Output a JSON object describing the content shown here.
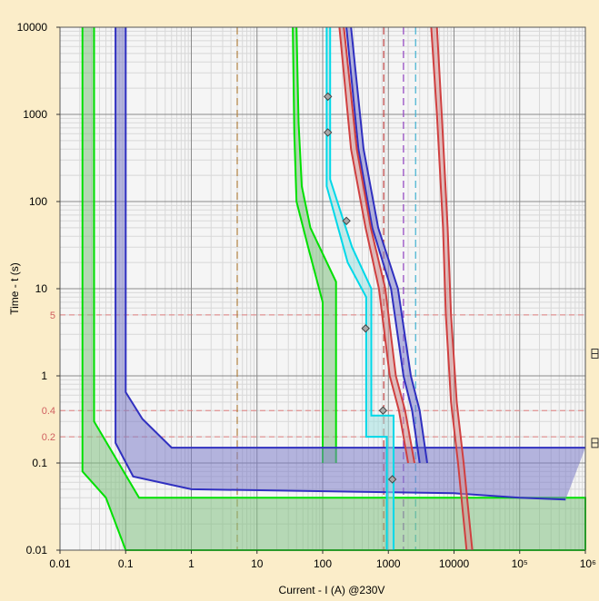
{
  "chart_data": {
    "type": "line",
    "xlabel": "Current - I (A) @230V",
    "ylabel": "Time - t (s)",
    "xscale": "log",
    "yscale": "log",
    "xlim": [
      0.01,
      1000000
    ],
    "ylim": [
      0.01,
      10000
    ],
    "grid": true,
    "legend": "none",
    "x_tick_labels": [
      "0.01",
      "0.1",
      "1",
      "10",
      "100",
      "1000",
      "10000",
      "10⁵",
      "10⁶"
    ],
    "x_tick_values": [
      0.01,
      0.1,
      1,
      10,
      100,
      1000,
      10000,
      100000,
      1000000
    ],
    "y_tick_labels": [
      "0.01",
      "0.1",
      "1",
      "10",
      "100",
      "1000",
      "10000"
    ],
    "y_tick_values": [
      0.01,
      0.1,
      1,
      10,
      100,
      1000,
      10000
    ],
    "reference_lines_time": [
      {
        "y": 5,
        "label": "5",
        "color": "#e08080"
      },
      {
        "y": 0.4,
        "label": "0.4",
        "color": "#e08080"
      },
      {
        "y": 0.2,
        "label": "0.2",
        "color": "#e08080"
      }
    ],
    "reference_lines_current": [
      {
        "x": 5,
        "color": "#b08040"
      },
      {
        "x": 850,
        "color": "#c04040"
      },
      {
        "x": 1700,
        "color": "#9040c0"
      },
      {
        "x": 2600,
        "color": "#40b0d0"
      }
    ],
    "bands": [
      {
        "color": "#00e000",
        "fill": "#7fc07f",
        "upper": [
          [
            0.033,
            10000
          ],
          [
            0.033,
            0.3
          ],
          [
            0.16,
            0.04
          ],
          [
            1000000,
            0.04
          ],
          [
            1000000,
            0.01
          ]
        ],
        "lower": [
          [
            0.022,
            10000
          ],
          [
            0.022,
            0.08
          ],
          [
            0.05,
            0.04
          ],
          [
            0.1,
            0.01
          ],
          [
            1000000,
            0.01
          ]
        ]
      },
      {
        "color": "#00e000",
        "fill": "#7fc07f",
        "upper": [
          [
            40,
            10000
          ],
          [
            43,
            800
          ],
          [
            48,
            150
          ],
          [
            65,
            50
          ],
          [
            160,
            12
          ],
          [
            160,
            0.1
          ]
        ],
        "lower": [
          [
            35,
            10000
          ],
          [
            37,
            600
          ],
          [
            40,
            100
          ],
          [
            60,
            30
          ],
          [
            100,
            7
          ],
          [
            100,
            0.1
          ]
        ]
      },
      {
        "color": "#3030c0",
        "fill": "#7b7bc8",
        "upper": [
          [
            0.1,
            10000
          ],
          [
            0.1,
            0.65
          ],
          [
            0.18,
            0.32
          ],
          [
            0.5,
            0.15
          ],
          [
            1000000,
            0.15
          ]
        ],
        "lower": [
          [
            0.07,
            10000
          ],
          [
            0.07,
            0.17
          ],
          [
            0.13,
            0.07
          ],
          [
            1,
            0.05
          ],
          [
            10000,
            0.045
          ],
          [
            100000,
            0.04
          ],
          [
            500000,
            0.038
          ]
        ]
      },
      {
        "color": "#3030c0",
        "fill": "#7b7bc8",
        "upper": [
          [
            270,
            10000
          ],
          [
            420,
            400
          ],
          [
            700,
            50
          ],
          [
            1400,
            10
          ],
          [
            2200,
            1
          ],
          [
            3000,
            0.4
          ],
          [
            3900,
            0.1
          ]
        ],
        "lower": [
          [
            230,
            10000
          ],
          [
            350,
            400
          ],
          [
            570,
            50
          ],
          [
            1100,
            10
          ],
          [
            1700,
            1
          ],
          [
            2300,
            0.4
          ],
          [
            3000,
            0.1
          ]
        ]
      },
      {
        "color": "#d04040",
        "fill": "#d09090",
        "upper": [
          [
            210,
            10000
          ],
          [
            330,
            400
          ],
          [
            540,
            50
          ],
          [
            900,
            10
          ],
          [
            1300,
            1
          ],
          [
            1800,
            0.4
          ],
          [
            2500,
            0.1
          ]
        ],
        "lower": [
          [
            180,
            10000
          ],
          [
            270,
            400
          ],
          [
            450,
            50
          ],
          [
            720,
            10
          ],
          [
            1050,
            1
          ],
          [
            1450,
            0.4
          ],
          [
            2000,
            0.1
          ]
        ]
      },
      {
        "color": "#d04040",
        "fill": "#d09090",
        "upper": [
          [
            5500,
            10000
          ],
          [
            6500,
            1000
          ],
          [
            8000,
            50
          ],
          [
            9000,
            5
          ],
          [
            11000,
            0.5
          ],
          [
            14000,
            0.1
          ],
          [
            19000,
            0.01
          ]
        ],
        "lower": [
          [
            4500,
            10000
          ],
          [
            5500,
            1000
          ],
          [
            6800,
            50
          ],
          [
            7500,
            5
          ],
          [
            9000,
            0.5
          ],
          [
            11500,
            0.1
          ],
          [
            15500,
            0.01
          ]
        ]
      },
      {
        "color": "#00d8e8",
        "fill": "#a0e0e0",
        "upper": [
          [
            130,
            10000
          ],
          [
            130,
            180
          ],
          [
            280,
            30
          ],
          [
            550,
            10
          ],
          [
            550,
            0.35
          ],
          [
            1200,
            0.35
          ],
          [
            1200,
            0.01
          ]
        ],
        "lower": [
          [
            115,
            10000
          ],
          [
            115,
            150
          ],
          [
            240,
            20
          ],
          [
            460,
            8
          ],
          [
            460,
            0.2
          ],
          [
            950,
            0.2
          ],
          [
            950,
            0.01
          ]
        ]
      }
    ],
    "markers": [
      {
        "x": 120,
        "y": 1600
      },
      {
        "x": 120,
        "y": 620
      },
      {
        "x": 230,
        "y": 60
      },
      {
        "x": 450,
        "y": 3.5
      },
      {
        "x": 830,
        "y": 0.4
      },
      {
        "x": 1150,
        "y": 0.065
      }
    ]
  }
}
